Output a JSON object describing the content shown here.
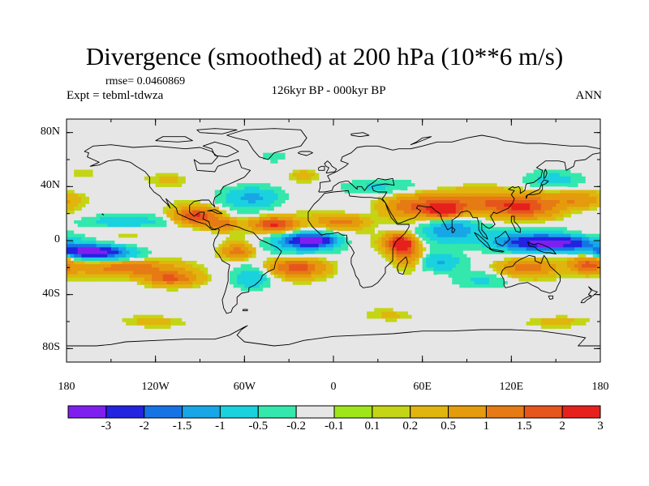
{
  "figure": {
    "title": "Divergence (smoothed) at 200 hPa (10**6 m/s)",
    "rmse_text": "rmse= 0.0460869",
    "expt_text": "Expt = tebml-tdwza",
    "center_label": "126kyr BP - 000kyr BP",
    "season_label": "ANN"
  },
  "map": {
    "projection": "cylindrical equidistant",
    "lon_range": [
      -180,
      180
    ],
    "lat_range": [
      -90,
      90
    ],
    "lat_ticks": [
      {
        "lat": 80,
        "label": "80N"
      },
      {
        "lat": 40,
        "label": "40N"
      },
      {
        "lat": 0,
        "label": "0"
      },
      {
        "lat": -40,
        "label": "40S"
      },
      {
        "lat": -80,
        "label": "80S"
      }
    ],
    "lon_ticks": [
      {
        "lon": -180,
        "label": "180"
      },
      {
        "lon": -120,
        "label": "120W"
      },
      {
        "lon": -60,
        "label": "60W"
      },
      {
        "lon": 0,
        "label": "0"
      },
      {
        "lon": 60,
        "label": "60E"
      },
      {
        "lon": 120,
        "label": "120E"
      },
      {
        "lon": 180,
        "label": "180"
      }
    ],
    "background_color": "#e6e6e6",
    "coast_color": "#000000"
  },
  "colorbar": {
    "colors": [
      "#7f1fef",
      "#2323e0",
      "#1673e6",
      "#17a6e6",
      "#1ad1de",
      "#34e8ad",
      "#e6e6e6",
      "#9ee61a",
      "#c4d515",
      "#e0b60e",
      "#e49b0c",
      "#e67a14",
      "#e6551c",
      "#e6201c"
    ],
    "tick_labels": [
      "-3",
      "-2",
      "-1.5",
      "-1",
      "-0.5",
      "-0.2",
      "-0.1",
      "0.1",
      "0.2",
      "0.5",
      "1",
      "1.5",
      "2",
      "3"
    ],
    "levels": [
      -3,
      -2,
      -1.5,
      -1,
      -0.5,
      -0.2,
      -0.1,
      0.1,
      0.2,
      0.5,
      1,
      1.5,
      2,
      3
    ]
  },
  "field_features": [
    {
      "name": "central-pacific-low",
      "lon": -165,
      "lat": -8,
      "rx": 18,
      "ry": 4,
      "amp": -3.2
    },
    {
      "name": "central-pacific-low-ext",
      "lon": -150,
      "lat": -10,
      "rx": 22,
      "ry": 7,
      "amp": -1.2
    },
    {
      "name": "equatorial-atlantic-low",
      "lon": -15,
      "lat": 0,
      "rx": 14,
      "ry": 4,
      "amp": -3.0
    },
    {
      "name": "equatorial-atlantic-low-ext",
      "lon": -20,
      "lat": -2,
      "rx": 28,
      "ry": 8,
      "amp": -1.0
    },
    {
      "name": "maritime-continent-low",
      "lon": 150,
      "lat": -2,
      "rx": 28,
      "ry": 5,
      "amp": -3.0
    },
    {
      "name": "maritime-continent-low-ext",
      "lon": 125,
      "lat": 0,
      "rx": 35,
      "ry": 9,
      "amp": -1.0
    },
    {
      "name": "indian-ocean-low",
      "lon": 80,
      "lat": 8,
      "rx": 18,
      "ry": 8,
      "amp": -1.4
    },
    {
      "name": "indian-ocean-low-2",
      "lon": 72,
      "lat": -16,
      "rx": 14,
      "ry": 7,
      "amp": -1.1
    },
    {
      "name": "gulf-mexico-high",
      "lon": -92,
      "lat": 18,
      "rx": 14,
      "ry": 6,
      "amp": 2.0
    },
    {
      "name": "caribbean-high",
      "lon": -75,
      "lat": 12,
      "rx": 10,
      "ry": 4,
      "amp": 1.3
    },
    {
      "name": "tropical-atlantic-high",
      "lon": -40,
      "lat": 12,
      "rx": 14,
      "ry": 5,
      "amp": 2.2
    },
    {
      "name": "south-pacific-high",
      "lon": -140,
      "lat": -20,
      "rx": 28,
      "ry": 6,
      "amp": 1.6
    },
    {
      "name": "south-pacific-high-2",
      "lon": -110,
      "lat": -28,
      "rx": 16,
      "ry": 5,
      "amp": 1.5
    },
    {
      "name": "south-america-high",
      "lon": -65,
      "lat": -8,
      "rx": 10,
      "ry": 5,
      "amp": 1.2
    },
    {
      "name": "south-atlantic-high",
      "lon": -25,
      "lat": -20,
      "rx": 18,
      "ry": 6,
      "amp": 1.7
    },
    {
      "name": "west-indian-high",
      "lon": 45,
      "lat": -2,
      "rx": 9,
      "ry": 6,
      "amp": 3.0
    },
    {
      "name": "east-africa-high",
      "lon": 50,
      "lat": -10,
      "rx": 10,
      "ry": 8,
      "amp": 1.2
    },
    {
      "name": "arabia-high",
      "lon": 55,
      "lat": 25,
      "rx": 22,
      "ry": 8,
      "amp": 1.3
    },
    {
      "name": "south-asia-high",
      "lon": 95,
      "lat": 28,
      "rx": 30,
      "ry": 8,
      "amp": 1.4
    },
    {
      "name": "east-asia-high",
      "lon": 128,
      "lat": 25,
      "rx": 20,
      "ry": 8,
      "amp": 1.8
    },
    {
      "name": "north-pacific-high",
      "lon": 165,
      "lat": 30,
      "rx": 18,
      "ry": 6,
      "amp": 1.0
    },
    {
      "name": "n-indian-high",
      "lon": 75,
      "lat": 22,
      "rx": 10,
      "ry": 5,
      "amp": 2.0
    },
    {
      "name": "australia-high",
      "lon": 130,
      "lat": -20,
      "rx": 18,
      "ry": 6,
      "amp": 1.3
    },
    {
      "name": "sw-pacific-high",
      "lon": 172,
      "lat": -18,
      "rx": 12,
      "ry": 6,
      "amp": 1.7
    },
    {
      "name": "sahel-high",
      "lon": 5,
      "lat": 14,
      "rx": 16,
      "ry": 5,
      "amp": 1.2
    },
    {
      "name": "tropical-n-pacific-low",
      "lon": -140,
      "lat": 14,
      "rx": 30,
      "ry": 5,
      "amp": -0.8
    },
    {
      "name": "na-atlantic-low",
      "lon": -55,
      "lat": 32,
      "rx": 20,
      "ry": 8,
      "amp": -1.1
    },
    {
      "name": "south-america-low",
      "lon": -55,
      "lat": -28,
      "rx": 12,
      "ry": 8,
      "amp": -0.9
    },
    {
      "name": "eurasia-low",
      "lon": 30,
      "lat": 40,
      "rx": 25,
      "ry": 6,
      "amp": -0.6
    },
    {
      "name": "nw-pacific-low",
      "lon": 150,
      "lat": 45,
      "rx": 20,
      "ry": 6,
      "amp": -0.7
    },
    {
      "name": "south-indian-low",
      "lon": 100,
      "lat": -30,
      "rx": 20,
      "ry": 6,
      "amp": -0.5
    },
    {
      "name": "greenland-low",
      "lon": -40,
      "lat": 62,
      "rx": 10,
      "ry": 4,
      "amp": -0.4
    },
    {
      "name": "north-atlantic-high",
      "lon": -20,
      "lat": 48,
      "rx": 10,
      "ry": 5,
      "amp": 0.4
    },
    {
      "name": "north-america-high",
      "lon": -110,
      "lat": 45,
      "rx": 14,
      "ry": 5,
      "amp": 0.3
    },
    {
      "name": "southern-ocean-pos-1",
      "lon": -120,
      "lat": -60,
      "rx": 20,
      "ry": 4,
      "amp": 0.3
    },
    {
      "name": "southern-ocean-pos-2",
      "lon": 40,
      "lat": -55,
      "rx": 15,
      "ry": 4,
      "amp": 0.25
    },
    {
      "name": "southern-ocean-pos-3",
      "lon": 150,
      "lat": -60,
      "rx": 20,
      "ry": 4,
      "amp": 0.3
    },
    {
      "name": "north-pacific-pos",
      "lon": -170,
      "lat": 50,
      "rx": 10,
      "ry": 4,
      "amp": 0.25
    }
  ]
}
